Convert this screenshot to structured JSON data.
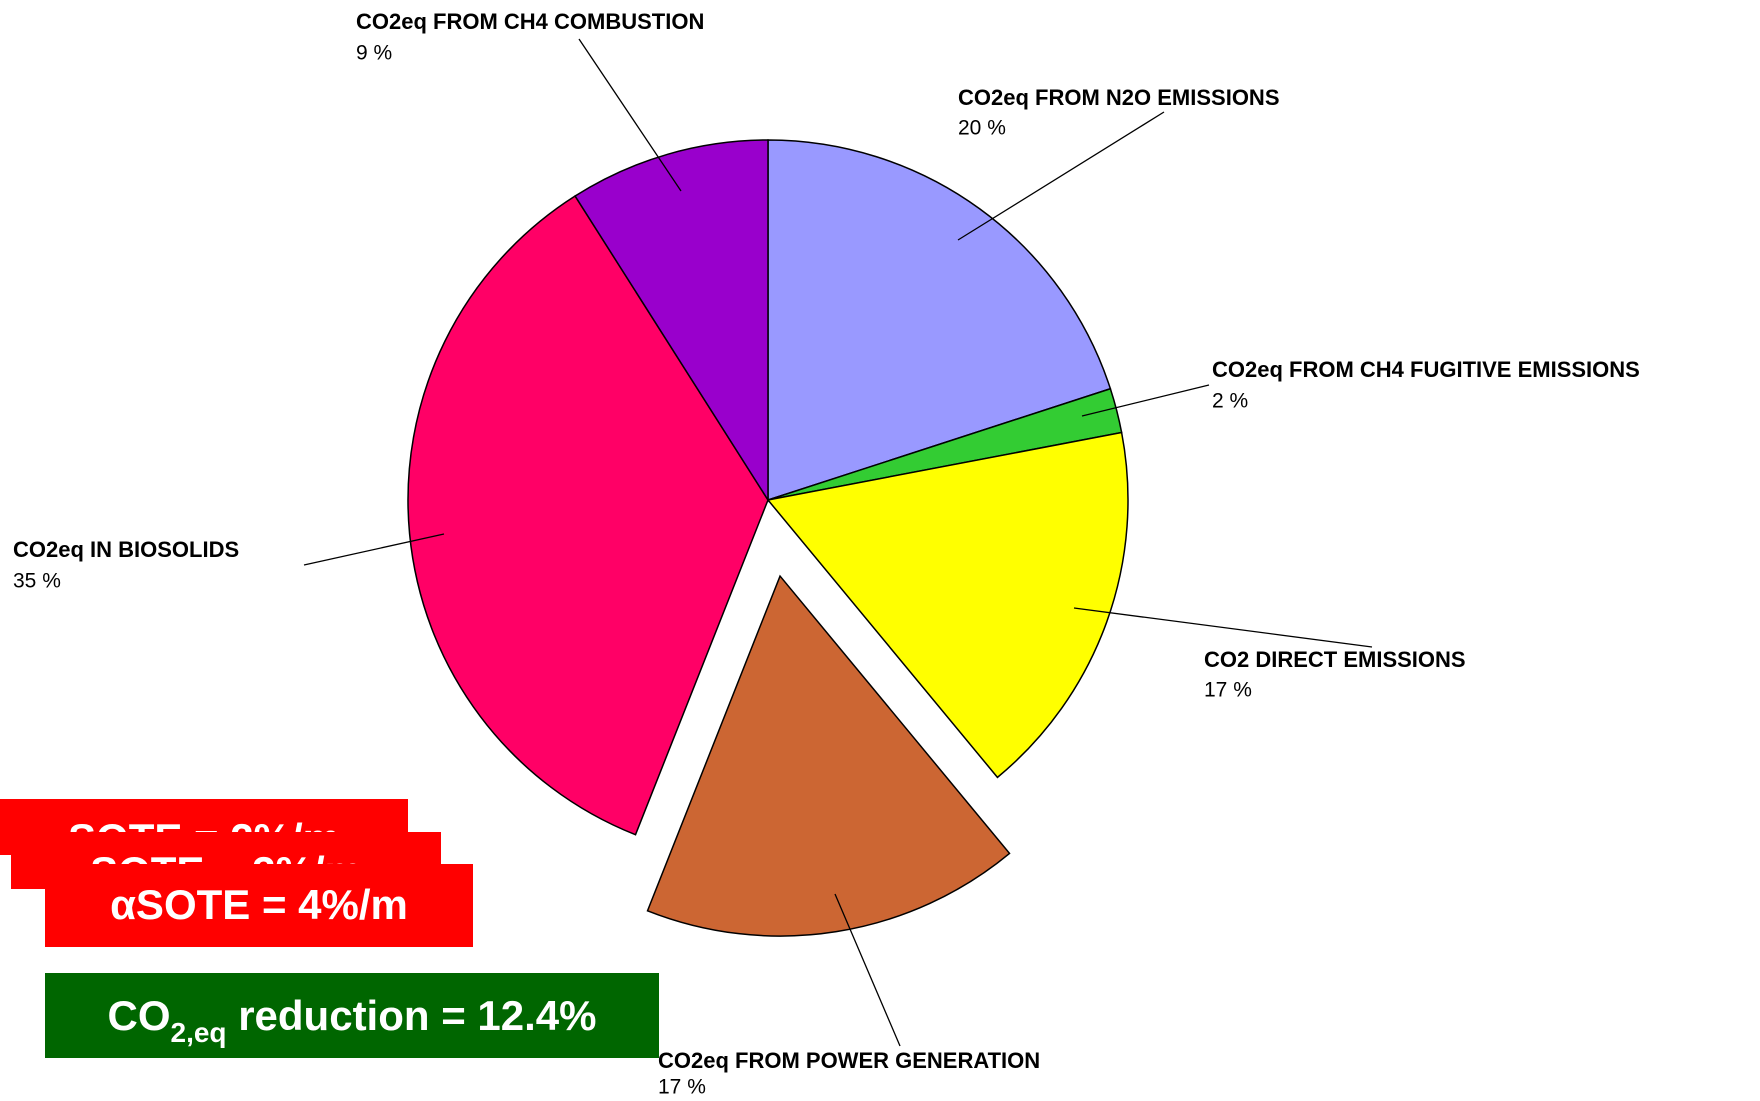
{
  "chart_data": {
    "type": "pie",
    "categories": [
      "CO2eq FROM N2O EMISSIONS",
      "CO2eq FROM CH4 FUGITIVE EMISSIONS",
      "CO2 DIRECT EMISSIONS",
      "CO2eq FROM POWER GENERATION",
      "CO2eq IN BIOSOLIDS",
      "CO2eq FROM CH4 COMBUSTION"
    ],
    "values": [
      20,
      2,
      17,
      17,
      35,
      9
    ],
    "value_labels": [
      "20 %",
      "2 %",
      "17 %",
      "17 %",
      "35 %",
      "9 %"
    ],
    "colors": [
      "#9999ff",
      "#33cc33",
      "#ffff00",
      "#cc6633",
      "#ff0066",
      "#9900cc"
    ],
    "exploded": [
      false,
      false,
      false,
      true,
      false,
      false
    ]
  },
  "annotations": {
    "red_boxes": [
      "SOTE = 2%/m",
      "SOTE = 3%/m",
      "αSOTE = 4%/m"
    ],
    "green_box": {
      "base": "CO",
      "sub": "2,eq",
      "rest": " reduction = 12.4%"
    }
  }
}
